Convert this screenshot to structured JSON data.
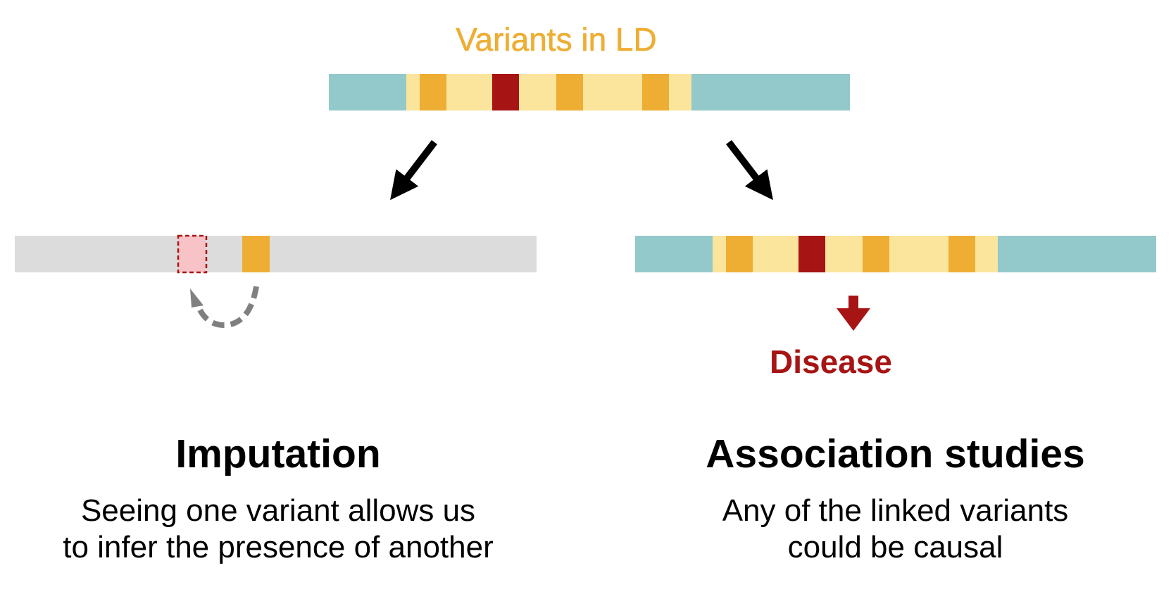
{
  "top_label": "Variants in LD",
  "disease_label": "Disease",
  "left_panel": {
    "heading": "Imputation",
    "description_lines": [
      "Seeing one variant allows us",
      "to infer the presence of another"
    ]
  },
  "right_panel": {
    "heading": "Association studies",
    "description_lines": [
      "Any of the linked variants",
      "could be causal"
    ]
  },
  "colors": {
    "flank": "#93C9CA",
    "ld_block": "#FBE49C",
    "linked_variant": "#EDAE33",
    "causal_variant": "#A71414",
    "unobserved_chromosome": "#DCDCDC",
    "imputed_variant_fill": "#F7C3C6",
    "imputed_variant_border": "#A71414",
    "imputation_arrow": "#808080",
    "arrow": "#000000"
  }
}
